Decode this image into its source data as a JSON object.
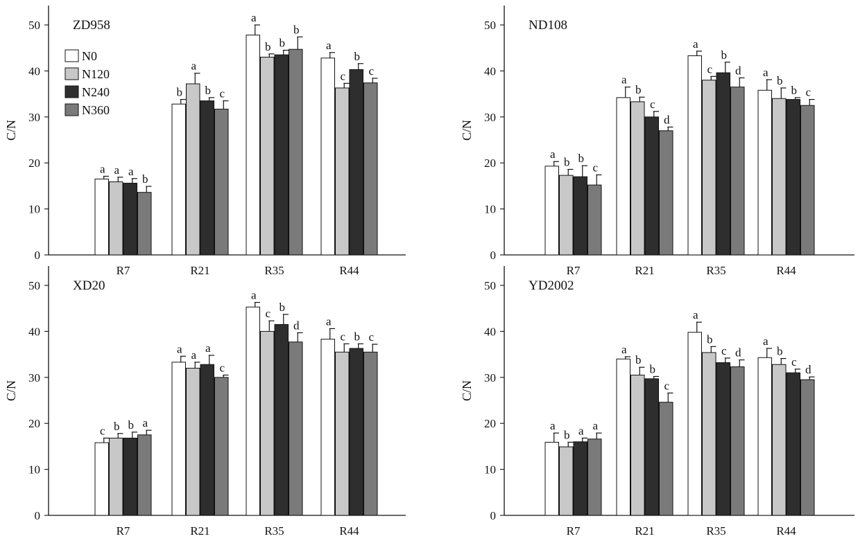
{
  "chart_data": [
    {
      "type": "bar",
      "title": "ZD958",
      "ylabel": "C/N",
      "xlabel": "",
      "ylim": [
        0,
        50
      ],
      "yticks": [
        0,
        10,
        20,
        30,
        40,
        50
      ],
      "categories": [
        "R7",
        "R21",
        "R35",
        "R44"
      ],
      "legend_position": "top-left",
      "show_legend": true,
      "series": [
        {
          "name": "N0",
          "color": "#ffffff",
          "values": [
            16.5,
            32.8,
            47.8,
            42.8
          ],
          "errors": [
            0.6,
            1.0,
            2.2,
            1.2
          ],
          "labels": [
            "a",
            "b",
            "a",
            "a"
          ]
        },
        {
          "name": "N120",
          "color": "#c8c8c8",
          "values": [
            15.9,
            37.2,
            43.0,
            36.3
          ],
          "errors": [
            1.0,
            2.3,
            0.7,
            1.0
          ],
          "labels": [
            "a",
            "a",
            "b",
            "c"
          ]
        },
        {
          "name": "N240",
          "color": "#2e2e2e",
          "values": [
            15.6,
            33.5,
            43.5,
            40.3
          ],
          "errors": [
            1.0,
            0.7,
            1.0,
            1.3
          ],
          "labels": [
            "a",
            "b",
            "b",
            "b"
          ]
        },
        {
          "name": "N360",
          "color": "#7a7a7a",
          "values": [
            13.6,
            31.7,
            44.7,
            37.4
          ],
          "errors": [
            1.3,
            1.8,
            2.7,
            1.0
          ],
          "labels": [
            "b",
            "c",
            "b",
            "c"
          ]
        }
      ]
    },
    {
      "type": "bar",
      "title": "ND108",
      "ylabel": "C/N",
      "xlabel": "",
      "ylim": [
        0,
        50
      ],
      "yticks": [
        0,
        10,
        20,
        30,
        40,
        50
      ],
      "categories": [
        "R7",
        "R21",
        "R35",
        "R44"
      ],
      "show_legend": false,
      "series": [
        {
          "name": "N0",
          "color": "#ffffff",
          "values": [
            19.3,
            34.2,
            43.3,
            35.8
          ],
          "errors": [
            1.0,
            2.3,
            1.0,
            2.3
          ],
          "labels": [
            "a",
            "a",
            "a",
            "a"
          ]
        },
        {
          "name": "N120",
          "color": "#c8c8c8",
          "values": [
            17.3,
            33.3,
            38.0,
            34.0
          ],
          "errors": [
            1.3,
            1.0,
            0.8,
            2.3
          ],
          "labels": [
            "b",
            "b",
            "c",
            "b"
          ]
        },
        {
          "name": "N240",
          "color": "#2e2e2e",
          "values": [
            17.0,
            30.0,
            39.6,
            33.8
          ],
          "errors": [
            2.4,
            1.2,
            2.3,
            0.4
          ],
          "labels": [
            "b",
            "c",
            "b",
            "b"
          ]
        },
        {
          "name": "N360",
          "color": "#7a7a7a",
          "values": [
            15.2,
            27.0,
            36.5,
            32.5
          ],
          "errors": [
            2.2,
            0.8,
            2.0,
            1.3
          ],
          "labels": [
            "c",
            "d",
            "d",
            "c"
          ]
        }
      ]
    },
    {
      "type": "bar",
      "title": "XD20",
      "ylabel": "C/N",
      "xlabel": "",
      "ylim": [
        0,
        50
      ],
      "yticks": [
        0,
        10,
        20,
        30,
        40,
        50
      ],
      "categories": [
        "R7",
        "R21",
        "R35",
        "R44"
      ],
      "show_legend": false,
      "series": [
        {
          "name": "N0",
          "color": "#ffffff",
          "values": [
            15.8,
            33.3,
            45.3,
            38.3
          ],
          "errors": [
            1.0,
            1.3,
            1.0,
            2.3
          ],
          "labels": [
            "c",
            "a",
            "a",
            "a"
          ]
        },
        {
          "name": "N120",
          "color": "#c8c8c8",
          "values": [
            16.8,
            32.0,
            40.0,
            35.5
          ],
          "errors": [
            1.0,
            1.3,
            2.3,
            1.8
          ],
          "labels": [
            "b",
            "a",
            "c",
            "c"
          ]
        },
        {
          "name": "N240",
          "color": "#2e2e2e",
          "values": [
            16.8,
            32.8,
            41.5,
            36.3
          ],
          "errors": [
            1.3,
            2.0,
            2.2,
            1.0
          ],
          "labels": [
            "b",
            "a",
            "b",
            "b"
          ]
        },
        {
          "name": "N360",
          "color": "#7a7a7a",
          "values": [
            17.5,
            30.0,
            37.7,
            35.5
          ],
          "errors": [
            1.0,
            0.5,
            2.0,
            1.7
          ],
          "labels": [
            "a",
            "c",
            "d",
            "c"
          ]
        }
      ]
    },
    {
      "type": "bar",
      "title": "YD2002",
      "ylabel": "C/N",
      "xlabel": "",
      "ylim": [
        0,
        50
      ],
      "yticks": [
        0,
        10,
        20,
        30,
        40,
        50
      ],
      "categories": [
        "R7",
        "R21",
        "R35",
        "R44"
      ],
      "show_legend": false,
      "series": [
        {
          "name": "N0",
          "color": "#ffffff",
          "values": [
            15.9,
            34.0,
            39.8,
            34.3
          ],
          "errors": [
            2.0,
            0.5,
            2.2,
            2.0
          ],
          "labels": [
            "a",
            "a",
            "a",
            "a"
          ]
        },
        {
          "name": "N120",
          "color": "#c8c8c8",
          "values": [
            14.9,
            30.5,
            35.4,
            32.8
          ],
          "errors": [
            1.0,
            1.7,
            1.3,
            1.3
          ],
          "labels": [
            "b",
            "b",
            "b",
            "b"
          ]
        },
        {
          "name": "N240",
          "color": "#2e2e2e",
          "values": [
            16.0,
            29.7,
            33.2,
            31.0
          ],
          "errors": [
            0.8,
            0.5,
            1.0,
            0.8
          ],
          "labels": [
            "a",
            "b",
            "c",
            "c"
          ]
        },
        {
          "name": "N360",
          "color": "#7a7a7a",
          "values": [
            16.6,
            24.6,
            32.3,
            29.5
          ],
          "errors": [
            1.3,
            2.0,
            1.5,
            0.6
          ],
          "labels": [
            "a",
            "c",
            "d",
            "d"
          ]
        }
      ]
    }
  ]
}
